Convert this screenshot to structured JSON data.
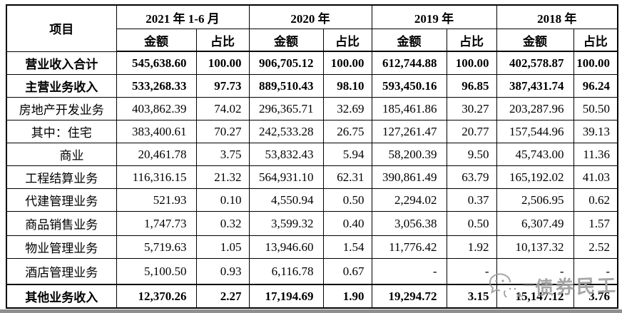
{
  "table": {
    "item_header": "项目",
    "col_groups": [
      {
        "label": "2021 年 1-6 月"
      },
      {
        "label": "2020 年"
      },
      {
        "label": "2019 年"
      },
      {
        "label": "2018 年"
      }
    ],
    "sub": {
      "amount": "金额",
      "ratio": "占比"
    },
    "rows": [
      {
        "label": "营业收入合计",
        "bold": true,
        "values": [
          "545,638.60",
          "100.00",
          "906,705.12",
          "100.00",
          "612,744.88",
          "100.00",
          "402,578.87",
          "100.00"
        ]
      },
      {
        "label": "主营业务收入",
        "bold": true,
        "values": [
          "533,268.33",
          "97.73",
          "889,510.43",
          "98.10",
          "593,450.16",
          "96.85",
          "387,431.74",
          "96.24"
        ]
      },
      {
        "label": "房地产开发业务",
        "values": [
          "403,862.39",
          "74.02",
          "296,365.71",
          "32.69",
          "185,461.86",
          "30.27",
          "203,287.96",
          "50.50"
        ]
      },
      {
        "label": "其中：住宅",
        "values": [
          "383,400.61",
          "70.27",
          "242,533.28",
          "26.75",
          "127,261.47",
          "20.77",
          "157,544.96",
          "39.13"
        ]
      },
      {
        "label": "商业",
        "indent": true,
        "values": [
          "20,461.78",
          "3.75",
          "53,832.43",
          "5.94",
          "58,200.39",
          "9.50",
          "45,743.00",
          "11.36"
        ]
      },
      {
        "label": "工程结算业务",
        "values": [
          "116,316.15",
          "21.32",
          "564,931.10",
          "62.31",
          "390,861.49",
          "63.79",
          "165,192.02",
          "41.03"
        ]
      },
      {
        "label": "代建管理业务",
        "values": [
          "521.93",
          "0.10",
          "4,550.94",
          "0.50",
          "2,294.02",
          "0.37",
          "2,506.95",
          "0.62"
        ]
      },
      {
        "label": "商品销售业务",
        "values": [
          "1,747.73",
          "0.32",
          "3,599.32",
          "0.40",
          "3,056.38",
          "0.50",
          "6,307.49",
          "1.57"
        ]
      },
      {
        "label": "物业管理业务",
        "values": [
          "5,719.63",
          "1.05",
          "13,946.60",
          "1.54",
          "11,776.42",
          "1.92",
          "10,137.32",
          "2.52"
        ]
      },
      {
        "label": "酒店管理业务",
        "values": [
          "5,100.50",
          "0.93",
          "6,116.78",
          "0.67",
          "-",
          "-",
          "-",
          "-"
        ]
      },
      {
        "label": "其他业务收入",
        "bold": true,
        "values": [
          "12,370.26",
          "2.27",
          "17,194.69",
          "1.90",
          "19,294.72",
          "3.15",
          "15,147.12",
          "3.76"
        ]
      }
    ]
  },
  "watermark": {
    "text": "债券民工",
    "icon": "wechat-logo"
  },
  "colors": {
    "border": "#000000",
    "text": "#000000",
    "watermark": "#999999",
    "bottom_bar": "#8f8f8f"
  }
}
